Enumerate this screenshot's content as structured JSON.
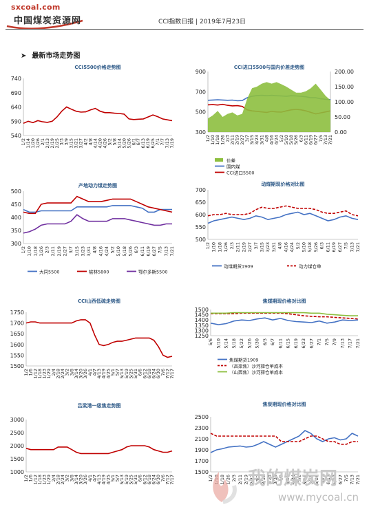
{
  "header": {
    "logo_url": "sxcoal.com",
    "logo_cn": "中国煤炭资源网",
    "title": "CCI指数日报 | 2019年7月23日",
    "section": "最新市场走势图"
  },
  "watermark": {
    "text": "我的煤炭网",
    "url": "www.mycoal.cn"
  },
  "chart_data": [
    {
      "type": "line",
      "title": "CCI5500价格走势图",
      "color": "#c00000",
      "ylim": [
        540,
        740
      ],
      "yticks": [
        540,
        590,
        640,
        690,
        740
      ],
      "categories": [
        "1/2",
        "1/14",
        "1/20",
        "1/26",
        "2/1",
        "2/13",
        "2/19",
        "2/25",
        "3/3",
        "3/9",
        "3/15",
        "3/21",
        "3/27",
        "4/2",
        "4/8",
        "4/14",
        "4/20",
        "4/26",
        "5/2",
        "5/8",
        "5/14",
        "5/20",
        "5/26",
        "6/1",
        "6/7",
        "6/13",
        "6/19",
        "6/25",
        "7/1",
        "7/7",
        "7/13",
        "7/19"
      ],
      "series": [
        {
          "name": "",
          "values": [
            583,
            590,
            585,
            592,
            588,
            586,
            590,
            605,
            625,
            640,
            632,
            625,
            622,
            623,
            630,
            635,
            625,
            620,
            620,
            618,
            617,
            615,
            598,
            596,
            597,
            598,
            605,
            612,
            606,
            598,
            595,
            592
          ]
        }
      ]
    },
    {
      "type": "line",
      "title": "CCI进口5500与国内价差走势图",
      "ylim": [
        300,
        900
      ],
      "yticks": [
        300,
        500,
        700,
        900
      ],
      "y2lim": [
        0,
        200
      ],
      "y2ticks": [
        "0.00",
        "50.00",
        "100.00",
        "150.00",
        "200.00"
      ],
      "categories": [
        "1/2",
        "1/10",
        "1/18",
        "1/26",
        "2/3",
        "2/11",
        "2/19",
        "2/27",
        "3/7",
        "3/15",
        "3/23",
        "3/31",
        "4/8",
        "4/16",
        "4/24",
        "5/2",
        "5/10",
        "5/18",
        "5/26",
        "6/3",
        "6/11",
        "6/19",
        "6/27",
        "7/5",
        "7/13",
        "7/21"
      ],
      "legend": [
        "价差",
        "国内煤",
        "CCI进口5500"
      ],
      "series": [
        {
          "name": "国内煤",
          "color": "#4472c4",
          "values": [
            615,
            618,
            620,
            618,
            615,
            617,
            610,
            612,
            640,
            655,
            662,
            665,
            660,
            665,
            660,
            658,
            655,
            660,
            658,
            655,
            650,
            640,
            640,
            630,
            625,
            622
          ]
        },
        {
          "name": "CCI进口5500",
          "color": "#c00000",
          "values": [
            570,
            572,
            568,
            575,
            565,
            560,
            562,
            555,
            520,
            510,
            505,
            500,
            495,
            505,
            500,
            498,
            510,
            520,
            525,
            520,
            510,
            495,
            480,
            490,
            500,
            510
          ]
        },
        {
          "name": "价差",
          "color": "#8dbf3f",
          "values": [
            45,
            55,
            70,
            50,
            60,
            65,
            55,
            60,
            110,
            145,
            150,
            160,
            165,
            160,
            165,
            158,
            150,
            140,
            130,
            130,
            135,
            145,
            160,
            140,
            120,
            105
          ]
        }
      ]
    },
    {
      "type": "line",
      "title": "产地动力煤走势图",
      "ylim": [
        300,
        500
      ],
      "yticks": [
        300,
        350,
        400,
        450,
        500
      ],
      "categories": [
        "1/2",
        "1/10",
        "1/18",
        "1/26",
        "2/3",
        "2/11",
        "2/19",
        "2/27",
        "3/7",
        "3/15",
        "3/23",
        "3/31",
        "4/8",
        "4/16",
        "4/24",
        "5/2",
        "5/10",
        "5/18",
        "5/26",
        "6/3",
        "6/11",
        "6/19",
        "6/27",
        "7/5",
        "7/13",
        "7/21"
      ],
      "legend": [
        "大同5500",
        "榆林5800",
        "鄂尔多斯5500"
      ],
      "series": [
        {
          "name": "大同5500",
          "color": "#4472c4",
          "values": [
            430,
            420,
            420,
            425,
            425,
            425,
            425,
            425,
            425,
            440,
            440,
            440,
            440,
            440,
            440,
            445,
            445,
            445,
            445,
            440,
            435,
            420,
            420,
            430,
            430,
            430
          ]
        },
        {
          "name": "榆林5800",
          "color": "#c00000",
          "values": [
            420,
            415,
            415,
            450,
            455,
            455,
            455,
            455,
            455,
            480,
            470,
            460,
            460,
            460,
            465,
            470,
            470,
            470,
            470,
            460,
            450,
            440,
            435,
            430,
            425,
            420
          ]
        },
        {
          "name": "鄂尔多斯5500",
          "color": "#7030a0",
          "values": [
            340,
            345,
            355,
            370,
            375,
            375,
            375,
            375,
            385,
            410,
            395,
            385,
            385,
            385,
            385,
            395,
            395,
            395,
            390,
            385,
            380,
            375,
            370,
            370,
            375,
            375
          ]
        }
      ]
    },
    {
      "type": "line",
      "title": "动煤期现价格对比图",
      "ylim": [
        500,
        700
      ],
      "yticks": [
        500,
        550,
        600,
        650,
        700
      ],
      "categories": [
        "1/2",
        "1/10",
        "1/18",
        "1/26",
        "2/3",
        "2/11",
        "2/19",
        "2/27",
        "3/7",
        "3/15",
        "3/23",
        "3/31",
        "4/8",
        "4/16",
        "4/24",
        "5/2",
        "5/10",
        "5/18",
        "5/26",
        "6/3",
        "6/11",
        "6/19",
        "6/27",
        "7/5",
        "7/13",
        "7/21"
      ],
      "legend": [
        "动煤期货1909",
        "动力煤仓单"
      ],
      "series": [
        {
          "name": "动煤期货1909",
          "color": "#4472c4",
          "dash": false,
          "values": [
            565,
            575,
            580,
            585,
            590,
            585,
            580,
            585,
            595,
            590,
            580,
            585,
            590,
            600,
            605,
            610,
            600,
            605,
            595,
            585,
            575,
            580,
            590,
            595,
            585,
            580
          ]
        },
        {
          "name": "动力煤仓单",
          "color": "#c00000",
          "dash": true,
          "values": [
            595,
            600,
            600,
            605,
            600,
            600,
            600,
            605,
            620,
            630,
            625,
            625,
            630,
            635,
            630,
            625,
            625,
            625,
            620,
            610,
            605,
            605,
            610,
            615,
            600,
            595
          ]
        }
      ]
    },
    {
      "type": "line",
      "title": "CCI山西低硫走势图",
      "color": "#c00000",
      "ylim": [
        1500,
        1750
      ],
      "yticks": [
        1500,
        1550,
        1600,
        1650,
        1700,
        1750
      ],
      "categories": [
        "1/2",
        "1/6",
        "1/12",
        "1/18",
        "1/23",
        "1/29",
        "2/4",
        "2/18",
        "2/24",
        "3/2",
        "3/8",
        "3/14",
        "3/20",
        "3/26",
        "4/1",
        "4/7",
        "4/13",
        "4/19",
        "4/25",
        "5/1",
        "5/7",
        "5/13",
        "5/19",
        "5/25",
        "5/31",
        "6/6",
        "6/12",
        "6/18",
        "6/24",
        "6/30",
        "7/6",
        "7/12",
        "7/17"
      ],
      "series": [
        {
          "name": "",
          "values": [
            1700,
            1705,
            1705,
            1700,
            1700,
            1700,
            1700,
            1700,
            1700,
            1700,
            1700,
            1710,
            1715,
            1715,
            1700,
            1645,
            1600,
            1595,
            1600,
            1610,
            1615,
            1615,
            1620,
            1625,
            1630,
            1630,
            1630,
            1630,
            1620,
            1590,
            1550,
            1540,
            1545
          ]
        }
      ]
    },
    {
      "type": "line",
      "title": "焦煤期现价格对比图",
      "ylim": [
        1250,
        1500
      ],
      "yticks": [
        1250,
        1300,
        1350,
        1400,
        1450,
        1500
      ],
      "categories": [
        "5/6",
        "5/10",
        "5/14",
        "5/18",
        "5/22",
        "5/26",
        "5/30",
        "6/3",
        "6/7",
        "6/11",
        "6/15",
        "6/19",
        "6/23",
        "6/27",
        "7/1",
        "7/5",
        "7/9",
        "7/13",
        "7/17",
        "7/21"
      ],
      "legend": [
        "焦煤期货1909",
        "（吕梁焦）沙河驿仓单成本",
        "（山西焦）沙河驿仓单成本"
      ],
      "series": [
        {
          "name": "焦煤期货1909",
          "color": "#4472c4",
          "dash": false,
          "values": [
            1370,
            1355,
            1365,
            1390,
            1400,
            1395,
            1410,
            1420,
            1400,
            1415,
            1395,
            1385,
            1380,
            1375,
            1390,
            1370,
            1380,
            1400,
            1395,
            1400
          ]
        },
        {
          "name": "（吕梁焦）沙河驿仓单成本",
          "color": "#c00000",
          "dash": true,
          "values": [
            1460,
            1460,
            1460,
            1460,
            1465,
            1465,
            1465,
            1465,
            1465,
            1465,
            1460,
            1450,
            1440,
            1435,
            1430,
            1430,
            1425,
            1420,
            1415,
            1410
          ]
        },
        {
          "name": "（山西焦）沙河驿仓单成本",
          "color": "#8dbf3f",
          "dash": false,
          "values": [
            1465,
            1465,
            1465,
            1470,
            1470,
            1470,
            1470,
            1470,
            1470,
            1470,
            1470,
            1470,
            1470,
            1465,
            1465,
            1455,
            1450,
            1445,
            1440,
            1440
          ]
        }
      ]
    },
    {
      "type": "line",
      "title": "吕梁港一级焦走势图",
      "color": "#c00000",
      "ylim": [
        1000,
        3000
      ],
      "yticks": [
        1000,
        1500,
        2000,
        2500,
        3000
      ],
      "categories": [
        "1/2",
        "1/6",
        "1/12",
        "1/18",
        "1/23",
        "1/29",
        "2/4",
        "2/18",
        "2/24",
        "3/2",
        "3/8",
        "3/14",
        "3/20",
        "3/26",
        "4/1",
        "4/7",
        "4/13",
        "4/19",
        "4/25",
        "5/1",
        "5/7",
        "5/13",
        "5/19",
        "5/25",
        "5/31",
        "6/6",
        "6/12",
        "6/18",
        "6/24",
        "6/30",
        "7/6",
        "7/12",
        "7/17"
      ],
      "series": [
        {
          "name": "",
          "values": [
            1900,
            1850,
            1850,
            1850,
            1850,
            1850,
            1850,
            1950,
            1950,
            1950,
            1850,
            1750,
            1700,
            1700,
            1700,
            1700,
            1700,
            1700,
            1700,
            1750,
            1800,
            1850,
            1950,
            2000,
            2000,
            2000,
            2000,
            1950,
            1850,
            1800,
            1750,
            1750,
            1800
          ]
        }
      ]
    },
    {
      "type": "line",
      "title": "焦炭期现价格对比图",
      "ylim": [
        1500,
        2500
      ],
      "yticks": [
        1500,
        1700,
        1900,
        2100,
        2300,
        2500
      ],
      "categories": [
        "1/2",
        "1/10",
        "1/18",
        "1/26",
        "2/3",
        "2/11",
        "2/19",
        "2/27",
        "3/7",
        "3/15",
        "3/23",
        "3/31",
        "4/8",
        "4/16",
        "4/24",
        "5/2",
        "5/10",
        "5/18",
        "5/26",
        "6/3",
        "6/11",
        "6/19",
        "6/27",
        "7/5",
        "7/13",
        "7/21"
      ],
      "legend": [
        "焦炭期货1909",
        "焦炭仓单"
      ],
      "series": [
        {
          "name": "焦炭期货1909",
          "color": "#4472c4",
          "dash": false,
          "values": [
            1850,
            1900,
            1920,
            1950,
            1960,
            1970,
            1950,
            1960,
            2000,
            2050,
            2000,
            1950,
            2000,
            2050,
            2100,
            2150,
            2250,
            2200,
            2100,
            2050,
            2100,
            2120,
            2080,
            2100,
            2200,
            2150
          ]
        },
        {
          "name": "焦炭仓单",
          "color": "#c00000",
          "dash": true,
          "values": [
            2200,
            2150,
            2150,
            2150,
            2150,
            2150,
            2150,
            2150,
            2150,
            2150,
            2150,
            2150,
            2050,
            2050,
            2050,
            2050,
            2100,
            2150,
            2150,
            2100,
            2050,
            2050,
            2000,
            2000,
            2050,
            2050
          ]
        }
      ]
    }
  ]
}
